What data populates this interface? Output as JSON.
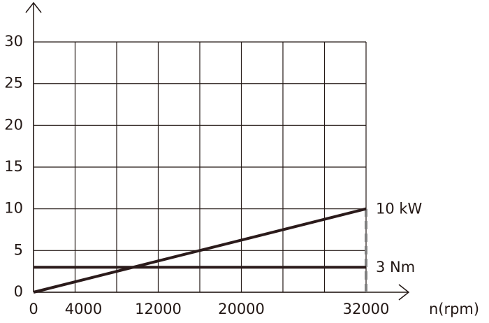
{
  "chart_data": {
    "type": "line",
    "x_label": "n(rpm)",
    "xlim": [
      0,
      32000
    ],
    "ylim": [
      0,
      30
    ],
    "xticks": [
      0,
      4000,
      12000,
      20000,
      32000
    ],
    "xgrid": [
      0,
      4000,
      8000,
      12000,
      16000,
      20000,
      24000,
      28000,
      32000
    ],
    "yticks": [
      0,
      5,
      10,
      15,
      20,
      25,
      30
    ],
    "grid": true,
    "series": [
      {
        "name": "10 kW",
        "color": "#2b1b1b",
        "x": [
          0,
          32000
        ],
        "values": [
          0,
          10
        ]
      },
      {
        "name": "3 Nm",
        "color": "#2b1b1b",
        "x": [
          0,
          32000
        ],
        "values": [
          3,
          3
        ]
      }
    ],
    "vline": {
      "x": 32000,
      "y": [
        0,
        10
      ],
      "color": "#808080"
    }
  }
}
